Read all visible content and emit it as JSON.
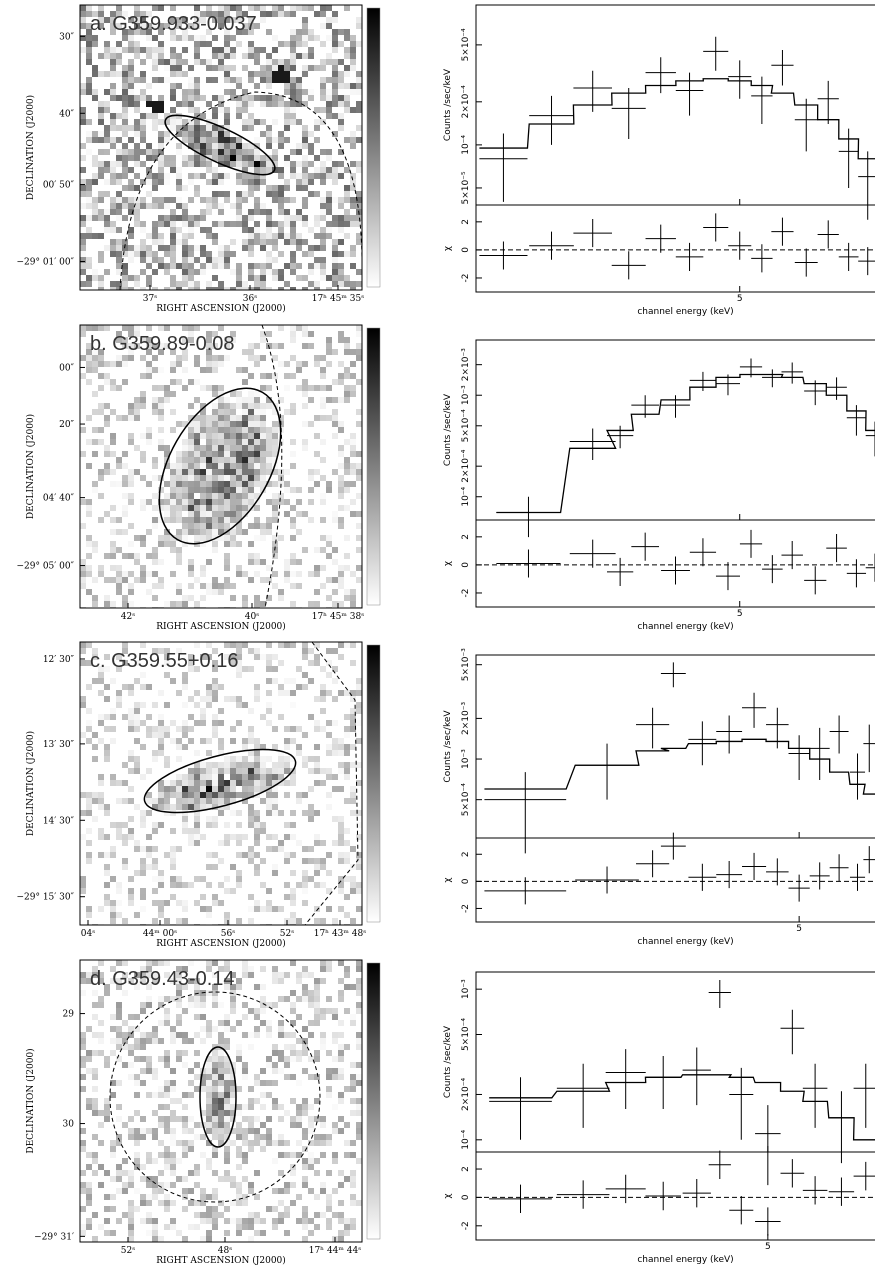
{
  "images": [
    {
      "label": "a. G359.933-0.037",
      "ylabel": "DECLINATION (J2000)",
      "xlabel": "RIGHT ASCENSION (J2000)",
      "yticks": [
        "30″",
        "40″",
        "00′ 50″",
        "−29° 01′ 00″"
      ],
      "xticks": [
        "37ˢ",
        "36ˢ",
        "17ʰ 45ᵐ 35ˢ"
      ]
    },
    {
      "label": "b. G359.89-0.08",
      "ylabel": "DECLINATION (J2000)",
      "xlabel": "RIGHT ASCENSION (J2000)",
      "yticks": [
        "00″",
        "20″",
        "04′ 40″",
        "−29° 05′ 00″"
      ],
      "xticks": [
        "42ˢ",
        "40ˢ",
        "17ʰ 45ᵐ 38ˢ"
      ]
    },
    {
      "label": "c. G359.55+0.16",
      "ylabel": "DECLINATION (J2000)",
      "xlabel": "RIGHT ASCENSION (J2000)",
      "yticks": [
        "12′ 30″",
        "13′ 30″",
        "14′ 30″",
        "−29° 15′ 30″"
      ],
      "xticks": [
        "04ˢ",
        "44ᵐ 00ˢ",
        "56ˢ",
        "52ˢ",
        "17ʰ 43ᵐ 48ˢ"
      ]
    },
    {
      "label": "d. G359.43-0.14",
      "ylabel": "DECLINATION (J2000)",
      "xlabel": "RIGHT ASCENSION (J2000)",
      "yticks": [
        "29",
        "30",
        "−29° 31′"
      ],
      "xticks": [
        "52ˢ",
        "48ˢ",
        "17ʰ 44ᵐ 44ˢ"
      ]
    }
  ],
  "chart_data": [
    {
      "type": "errorbar",
      "xlabel": "channel energy (keV)",
      "ylabel": "Counts /sec/keV",
      "residual_label": "χ",
      "log_x": true,
      "log_y": true,
      "xlim": [
        2,
        8
      ],
      "xticks": [
        5
      ],
      "ylim": [
        3.8e-05,
        0.00095
      ],
      "yticks": [
        {
          "value": 5e-05,
          "label": "5×10⁻⁵"
        },
        {
          "value": 0.0001,
          "label": "10⁻⁴"
        },
        {
          "value": 0.0002,
          "label": "2×10⁻⁴"
        },
        {
          "value": 0.0005,
          "label": "5×10⁻⁴"
        }
      ],
      "residual_ylim": [
        -3,
        3.2
      ],
      "residual_yticks": [
        -2,
        0,
        2
      ],
      "x": [
        2.2,
        2.6,
        3.0,
        3.4,
        3.8,
        4.2,
        4.6,
        5.0,
        5.4,
        5.8,
        6.3,
        6.8,
        7.3,
        7.8
      ],
      "values": [
        8e-05,
        0.00016,
        0.00025,
        0.00018,
        0.00032,
        0.00024,
        0.00045,
        0.0003,
        0.00022,
        0.00036,
        0.00015,
        0.00021,
        9e-05,
        6e-05
      ],
      "errors": [
        4e-05,
        6e-05,
        8e-05,
        7e-05,
        9e-05,
        8e-05,
        0.00012,
        9e-05,
        8e-05,
        0.0001,
        6e-05,
        7e-05,
        4e-05,
        3e-05
      ],
      "model": [
        9.5e-05,
        0.00014,
        0.00019,
        0.00023,
        0.00026,
        0.00028,
        0.00029,
        0.00028,
        0.00026,
        0.00023,
        0.00019,
        0.00015,
        0.00011,
        8e-05
      ],
      "residuals": [
        -0.4,
        0.3,
        1.2,
        -1.1,
        0.8,
        -0.5,
        1.6,
        0.3,
        -0.6,
        1.3,
        -0.9,
        1.1,
        -0.5,
        -0.8
      ]
    },
    {
      "type": "errorbar",
      "xlabel": "channel energy (keV)",
      "ylabel": "Counts /sec/keV",
      "residual_label": "χ",
      "log_x": true,
      "log_y": true,
      "xlim": [
        2,
        8
      ],
      "xticks": [
        5
      ],
      "ylim": [
        5.9e-05,
        0.0035
      ],
      "yticks": [
        {
          "value": 0.0001,
          "label": "10⁻⁴"
        },
        {
          "value": 0.0002,
          "label": "2×10⁻⁴"
        },
        {
          "value": 0.0005,
          "label": "5×10⁻⁴"
        },
        {
          "value": 0.001,
          "label": "10⁻³"
        },
        {
          "value": 0.002,
          "label": "2×10⁻³"
        }
      ],
      "residual_ylim": [
        -3,
        3.2
      ],
      "residual_yticks": [
        -2,
        0,
        2
      ],
      "x": [
        2.4,
        3.0,
        3.3,
        3.6,
        4.0,
        4.4,
        4.8,
        5.2,
        5.6,
        6.0,
        6.5,
        7.0,
        7.5,
        8.0
      ],
      "values": [
        7e-05,
        0.00035,
        0.0004,
        0.0008,
        0.0008,
        0.0014,
        0.0013,
        0.0019,
        0.0015,
        0.0017,
        0.0011,
        0.0012,
        0.0006,
        0.0004
      ],
      "errors": [
        3e-05,
        0.00012,
        0.0001,
        0.0002,
        0.0002,
        0.0003,
        0.0003,
        0.0004,
        0.0003,
        0.0004,
        0.0003,
        0.0003,
        0.0002,
        0.00015
      ],
      "model": [
        7e-05,
        0.0003,
        0.00045,
        0.00065,
        0.0009,
        0.0012,
        0.0015,
        0.0016,
        0.0016,
        0.0015,
        0.0013,
        0.001,
        0.0007,
        0.00045
      ],
      "residuals": [
        0.1,
        0.8,
        -0.5,
        1.3,
        -0.4,
        0.9,
        -0.8,
        1.5,
        -0.3,
        0.7,
        -1.1,
        1.2,
        -0.6,
        -0.2
      ]
    },
    {
      "type": "errorbar",
      "xlabel": "channel energy (keV)",
      "ylabel": "Counts /sec/keV",
      "residual_label": "χ",
      "log_x": true,
      "log_y": true,
      "xlim": [
        2,
        6.2
      ],
      "xticks": [
        5
      ],
      "ylim": [
        0.00026,
        0.0059
      ],
      "yticks": [
        {
          "value": 0.0005,
          "label": "5×10⁻⁴"
        },
        {
          "value": 0.001,
          "label": "10⁻³"
        },
        {
          "value": 0.002,
          "label": "2×10⁻³"
        },
        {
          "value": 0.005,
          "label": "5×10⁻³"
        }
      ],
      "residual_ylim": [
        -3,
        3.2
      ],
      "residual_yticks": [
        -2,
        0,
        2
      ],
      "x": [
        2.3,
        2.9,
        3.3,
        3.5,
        3.8,
        4.1,
        4.4,
        4.7,
        5.0,
        5.3,
        5.6,
        5.9,
        6.1
      ],
      "values": [
        0.0005,
        0.0009,
        0.0018,
        0.0043,
        0.0014,
        0.0016,
        0.0024,
        0.0018,
        0.0011,
        0.0012,
        0.0016,
        0.0008,
        0.0013
      ],
      "errors": [
        0.0003,
        0.0004,
        0.0006,
        0.0009,
        0.0005,
        0.0005,
        0.0007,
        0.0006,
        0.0004,
        0.0005,
        0.0005,
        0.0003,
        0.0005
      ],
      "model": [
        0.0006,
        0.0009,
        0.00115,
        0.0012,
        0.0013,
        0.00135,
        0.0014,
        0.00135,
        0.0012,
        0.001,
        0.0008,
        0.00065,
        0.00055
      ],
      "residuals": [
        -0.7,
        0.1,
        1.3,
        2.6,
        0.3,
        0.5,
        1.1,
        0.7,
        -0.5,
        0.4,
        1.0,
        0.3,
        1.6
      ]
    },
    {
      "type": "errorbar",
      "xlabel": "channel energy (keV)",
      "ylabel": "Counts /sec/keV",
      "residual_label": "χ",
      "log_x": true,
      "log_y": true,
      "xlim": [
        2,
        7
      ],
      "xticks": [
        5
      ],
      "ylim": [
        8.3e-05,
        0.0013
      ],
      "yticks": [
        {
          "value": 0.0001,
          "label": "10⁻⁴"
        },
        {
          "value": 0.0002,
          "label": "2×10⁻⁴"
        },
        {
          "value": 0.0005,
          "label": "5×10⁻⁴"
        },
        {
          "value": 0.001,
          "label": "10⁻³"
        }
      ],
      "residual_ylim": [
        -3,
        3.2
      ],
      "residual_yticks": [
        -2,
        0,
        2
      ],
      "x": [
        2.3,
        2.8,
        3.2,
        3.6,
        4.0,
        4.3,
        4.6,
        5.0,
        5.4,
        5.8,
        6.3,
        6.8
      ],
      "values": [
        0.00018,
        0.00022,
        0.00028,
        0.00026,
        0.00029,
        0.00095,
        0.0002,
        0.00011,
        0.00055,
        0.00022,
        0.00014,
        0.00022
      ],
      "errors": [
        8e-05,
        0.0001,
        0.00012,
        0.0001,
        0.00012,
        0.0002,
        0.0001,
        6e-05,
        0.00018,
        0.0001,
        7e-05,
        0.0001
      ],
      "model": [
        0.00019,
        0.00021,
        0.00024,
        0.00026,
        0.00027,
        0.00027,
        0.00026,
        0.00024,
        0.00021,
        0.00018,
        0.00014,
        0.0001
      ],
      "residuals": [
        -0.1,
        0.2,
        0.6,
        0.1,
        0.3,
        2.3,
        -0.9,
        -1.7,
        1.7,
        0.5,
        0.4,
        1.5
      ]
    }
  ]
}
